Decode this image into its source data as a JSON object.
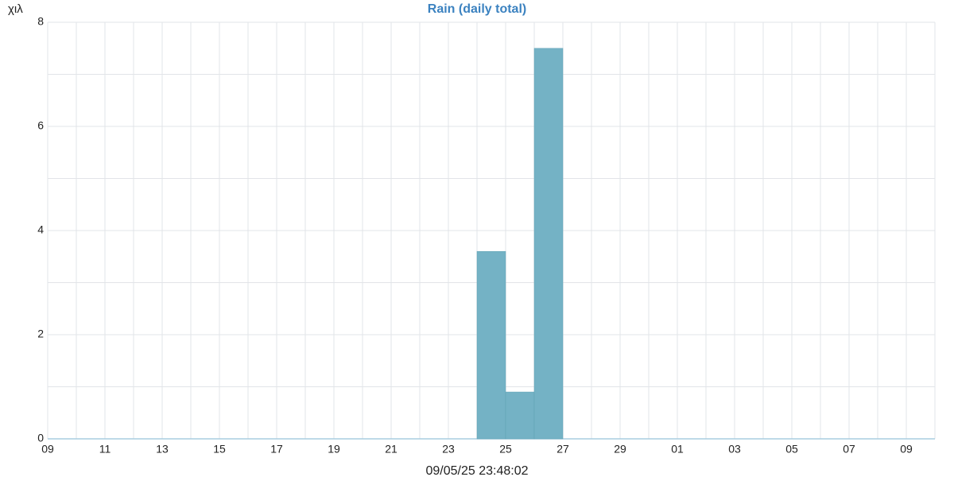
{
  "chart_data": {
    "type": "histogram",
    "title": "Rain (daily total)",
    "y_label": "χιλ",
    "x_label": "09/05/25 23:48:02",
    "bins": [
      15,
      16,
      17,
      18
    ],
    "values": [
      3.6,
      0.9,
      7.5
    ],
    "color": "#74b2c5",
    "xlim": [
      0,
      31
    ],
    "xticks": [
      {
        "value": 0,
        "label": "09"
      },
      {
        "value": 2,
        "label": "11"
      },
      {
        "value": 4,
        "label": "13"
      },
      {
        "value": 6,
        "label": "15"
      },
      {
        "value": 8,
        "label": "17"
      },
      {
        "value": 10,
        "label": "19"
      },
      {
        "value": 12,
        "label": "21"
      },
      {
        "value": 14,
        "label": "23"
      },
      {
        "value": 16,
        "label": "25"
      },
      {
        "value": 18,
        "label": "27"
      },
      {
        "value": 20,
        "label": "29"
      },
      {
        "value": 22,
        "label": "01"
      },
      {
        "value": 24,
        "label": "03"
      },
      {
        "value": 26,
        "label": "05"
      },
      {
        "value": 28,
        "label": "07"
      },
      {
        "value": 30,
        "label": "09"
      }
    ],
    "x_minor_ticks": [
      1,
      3,
      5,
      7,
      9,
      11,
      13,
      15,
      17,
      19,
      21,
      23,
      25,
      27,
      29
    ],
    "ylim": [
      0,
      8
    ],
    "yticks": [
      0,
      2,
      4,
      6,
      8
    ],
    "y_minor_ticks": [
      1,
      3,
      5,
      7
    ],
    "grid": true
  }
}
